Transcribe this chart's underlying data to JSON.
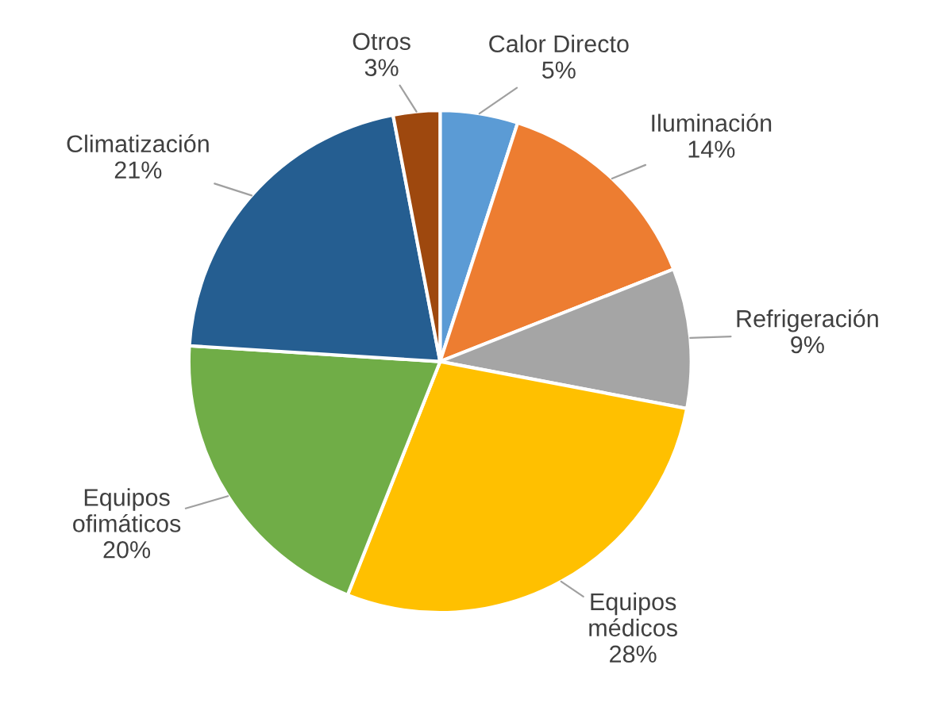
{
  "chart_data": {
    "type": "pie",
    "categories": [
      "Calor Directo",
      "Iluminación",
      "Refrigeración",
      "Equipos médicos",
      "Equipos ofimáticos",
      "Climatización",
      "Otros"
    ],
    "values": [
      5,
      14,
      9,
      28,
      20,
      21,
      3
    ],
    "value_labels": [
      "5%",
      "14%",
      "9%",
      "28%",
      "20%",
      "21%",
      "3%"
    ],
    "colors": [
      "#5b9bd5",
      "#ed7d31",
      "#a5a5a5",
      "#ffc000",
      "#70ad47",
      "#255e91",
      "#9e480e"
    ],
    "legend": false
  }
}
